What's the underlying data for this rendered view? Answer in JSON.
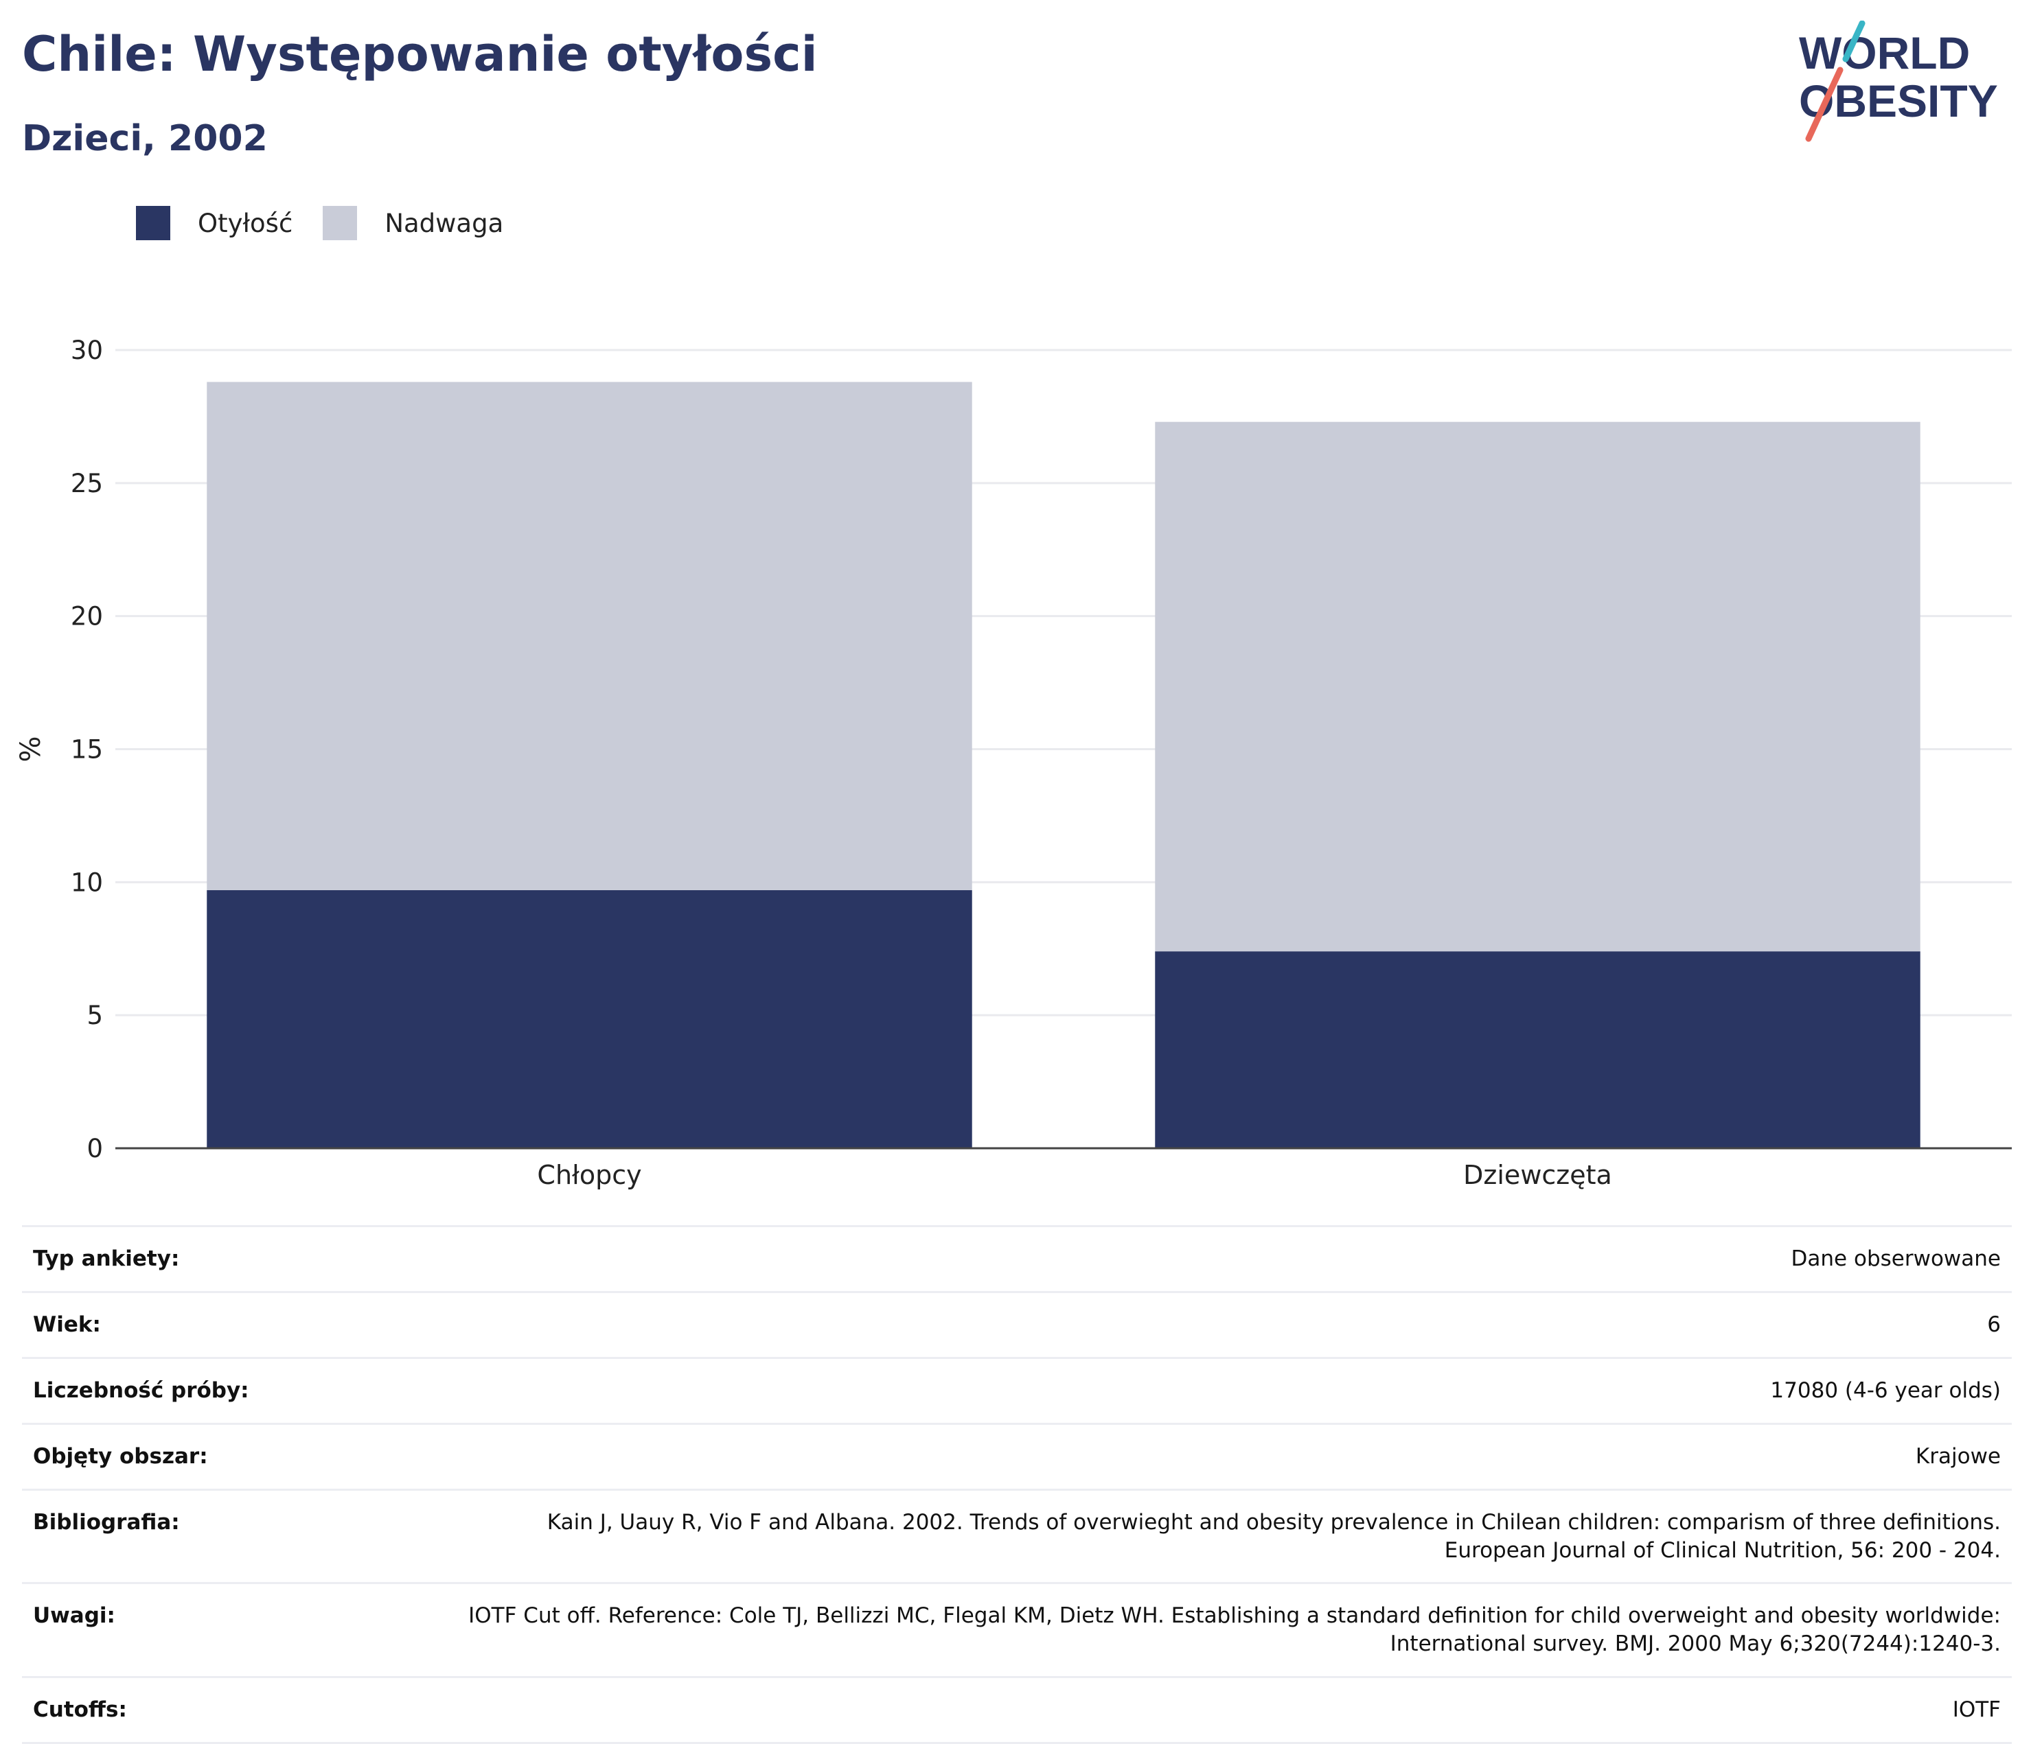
{
  "header": {
    "title": "Chile: Występowanie otyłości",
    "subtitle": "Dzieci, 2002"
  },
  "logo": {
    "line1": "WORLD",
    "line2": "OBESITY",
    "colors": {
      "text": "#2a3562",
      "slash_top": "#39b5c6",
      "slash_bottom": "#e8685a"
    }
  },
  "chart_data": {
    "type": "bar",
    "stacked": true,
    "categories": [
      "Chłopcy",
      "Dziewczęta"
    ],
    "series": [
      {
        "name": "Otyłość",
        "values": [
          9.7,
          7.4
        ],
        "color": "#2a3663"
      },
      {
        "name": "Nadwaga",
        "values": [
          19.1,
          19.9
        ],
        "color": "#c9ccd8"
      }
    ],
    "xlabel": "",
    "ylabel": "%",
    "ylim": [
      0,
      30
    ],
    "yticks": [
      0,
      5,
      10,
      15,
      20,
      25,
      30
    ],
    "grid": true,
    "legend_position": "top-left"
  },
  "info": [
    {
      "label": "Typ ankiety:",
      "value": "Dane obserwowane"
    },
    {
      "label": "Wiek:",
      "value": "6"
    },
    {
      "label": "Liczebność próby:",
      "value": "17080 (4-6 year olds)"
    },
    {
      "label": "Objęty obszar:",
      "value": "Krajowe"
    },
    {
      "label": "Bibliografia:",
      "value": "Kain J, Uauy R, Vio F and Albana. 2002. Trends of overwieght and obesity prevalence in Chilean children: comparism of three definitions. European Journal of Clinical Nutrition, 56: 200 - 204."
    },
    {
      "label": "Uwagi:",
      "value": "IOTF Cut off. Reference: Cole TJ, Bellizzi MC, Flegal KM, Dietz WH. Establishing a standard definition for child overweight and obesity worldwide: International survey. BMJ. 2000 May 6;320(7244):1240-3."
    },
    {
      "label": "Cutoffs:",
      "value": "IOTF"
    }
  ]
}
